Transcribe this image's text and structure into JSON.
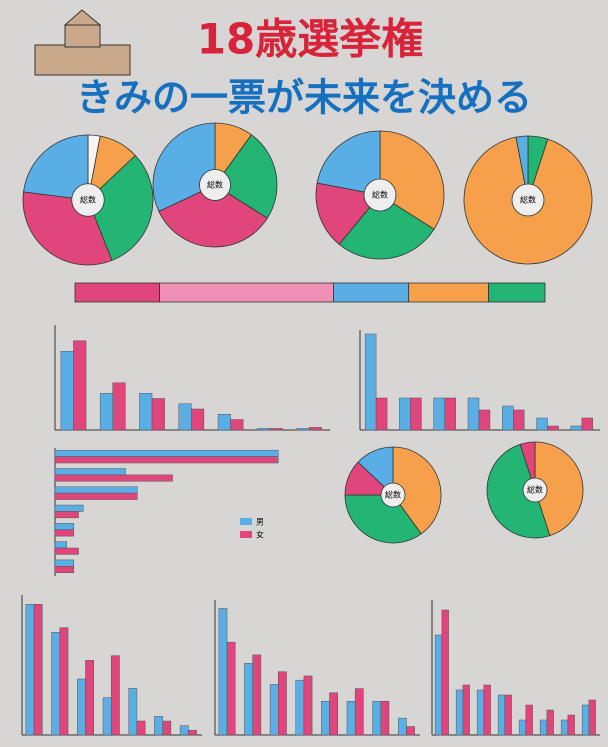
{
  "poster": {
    "title": "18歳選挙権",
    "subtitle": "きみの一票が未来を決める"
  },
  "chart_data": [
    {
      "type": "pie",
      "center_label": "総数",
      "values": [
        3,
        10,
        31,
        33,
        23
      ],
      "colors": [
        "#f5f5f5",
        "#f7a04b",
        "#22b573",
        "#e0457b",
        "#5aaee6"
      ]
    },
    {
      "type": "pie",
      "center_label": "総数",
      "values": [
        10,
        24,
        34,
        32
      ],
      "colors": [
        "#f7a04b",
        "#22b573",
        "#e0457b",
        "#5aaee6"
      ]
    },
    {
      "type": "pie",
      "center_label": "総数",
      "values": [
        34,
        27,
        17,
        22
      ],
      "colors": [
        "#f7a04b",
        "#22b573",
        "#e0457b",
        "#5aaee6"
      ]
    },
    {
      "type": "pie",
      "center_label": "総数",
      "values": [
        5,
        92,
        3
      ],
      "colors": [
        "#22b573",
        "#f7a04b",
        "#5aaee6"
      ]
    },
    {
      "type": "stacked",
      "xlim": [
        0,
        100
      ],
      "values": [
        18,
        37,
        16,
        17,
        12
      ],
      "colors": [
        "#e0457b",
        "#f08fb6",
        "#5aaee6",
        "#f7a04b",
        "#22b573"
      ]
    },
    {
      "type": "bar",
      "ylim": [
        0,
        20
      ],
      "categories": [
        null,
        null,
        null,
        null,
        null,
        null,
        null
      ],
      "series": [
        {
          "name": "男",
          "color": "#5aaee6",
          "values": [
            15,
            7,
            7,
            5,
            3,
            0.3,
            0.3
          ]
        },
        {
          "name": "女",
          "color": "#e0457b",
          "values": [
            17,
            9,
            6,
            4,
            2,
            0.3,
            0.5
          ]
        }
      ]
    },
    {
      "type": "bar",
      "ylim": [
        0,
        25
      ],
      "categories": [
        null,
        null,
        null,
        null,
        null,
        null,
        null
      ],
      "series": [
        {
          "name": "男",
          "color": "#5aaee6",
          "values": [
            24,
            8,
            8,
            8,
            6,
            3,
            1
          ]
        },
        {
          "name": "女",
          "color": "#e0457b",
          "values": [
            8,
            8,
            8,
            5,
            5,
            1,
            3
          ]
        }
      ]
    },
    {
      "type": "barh",
      "xlim": [
        0,
        100
      ],
      "legend": true,
      "categories": [
        null,
        null,
        null,
        null,
        null,
        null,
        null
      ],
      "series": [
        {
          "name": "男",
          "color": "#5aaee6",
          "values": [
            95,
            30,
            35,
            12,
            8,
            5,
            8
          ]
        },
        {
          "name": "女",
          "color": "#e0457b",
          "values": [
            95,
            50,
            35,
            10,
            8,
            10,
            8
          ]
        }
      ]
    },
    {
      "type": "pie",
      "center_label": "総数",
      "values": [
        40,
        35,
        12,
        13
      ],
      "colors": [
        "#f7a04b",
        "#22b573",
        "#e0457b",
        "#5aaee6"
      ]
    },
    {
      "type": "pie",
      "center_label": "総数",
      "values": [
        45,
        50,
        5
      ],
      "colors": [
        "#f7a04b",
        "#22b573",
        "#e0457b"
      ]
    },
    {
      "type": "bar",
      "ylim": [
        0,
        30
      ],
      "categories": [
        null,
        null,
        null,
        null,
        null,
        null,
        null
      ],
      "series": [
        {
          "name": "男",
          "color": "#5aaee6",
          "values": [
            28,
            22,
            12,
            8,
            10,
            4,
            2
          ]
        },
        {
          "name": "女",
          "color": "#e0457b",
          "values": [
            28,
            23,
            16,
            17,
            3,
            3,
            1
          ]
        }
      ]
    },
    {
      "type": "bar",
      "ylim": [
        0,
        32
      ],
      "categories": [
        null,
        null,
        null,
        null,
        null,
        null,
        null,
        null
      ],
      "series": [
        {
          "name": "男",
          "color": "#5aaee6",
          "values": [
            30,
            17,
            12,
            13,
            8,
            8,
            8,
            4
          ]
        },
        {
          "name": "女",
          "color": "#e0457b",
          "values": [
            22,
            19,
            15,
            14,
            10,
            11,
            8,
            2
          ]
        }
      ]
    },
    {
      "type": "bar",
      "ylim": [
        0,
        27
      ],
      "categories": [
        null,
        null,
        null,
        null,
        null,
        null,
        null,
        null
      ],
      "series": [
        {
          "name": "男",
          "color": "#5aaee6",
          "values": [
            20,
            9,
            9,
            8,
            3,
            3,
            3,
            6
          ]
        },
        {
          "name": "女",
          "color": "#e0457b",
          "values": [
            25,
            10,
            10,
            8,
            6,
            5,
            4,
            7
          ]
        }
      ]
    }
  ]
}
